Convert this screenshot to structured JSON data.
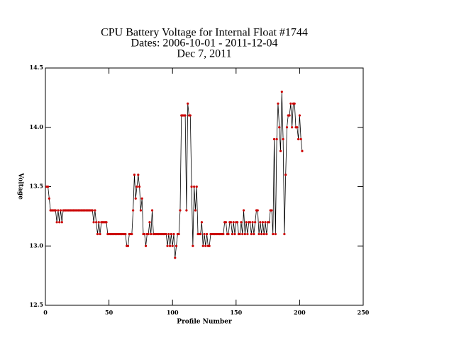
{
  "chart_data": {
    "type": "line",
    "title": [
      "CPU Battery Voltage for Internal Float #1744",
      "Dates:  2006-10-01 -  2011-12-04",
      "Dec  7, 2011"
    ],
    "x_label": "Profile Number",
    "y_label": "Voltage",
    "xlim": [
      0,
      250
    ],
    "xticks": [
      0,
      50,
      100,
      150,
      200,
      250
    ],
    "ylim": [
      12.5,
      14.5
    ],
    "yticks": [
      12.5,
      {
        "value": 13,
        "label": "13.0"
      },
      13.5,
      {
        "value": 14,
        "label": "14.0"
      },
      14.5
    ],
    "line_color": "#000000",
    "marker_color": "#cc0000",
    "x": [
      1,
      2,
      3,
      4,
      5,
      6,
      7,
      8,
      9,
      10,
      11,
      12,
      13,
      14,
      15,
      16,
      17,
      18,
      19,
      20,
      21,
      22,
      23,
      24,
      25,
      26,
      27,
      28,
      29,
      30,
      31,
      32,
      33,
      34,
      35,
      36,
      37,
      38,
      39,
      40,
      41,
      42,
      43,
      44,
      45,
      46,
      47,
      48,
      49,
      50,
      51,
      52,
      53,
      54,
      55,
      56,
      57,
      58,
      59,
      60,
      61,
      62,
      63,
      64,
      65,
      66,
      67,
      68,
      69,
      70,
      71,
      72,
      73,
      74,
      75,
      76,
      77,
      78,
      79,
      80,
      81,
      82,
      83,
      84,
      85,
      86,
      87,
      88,
      89,
      90,
      91,
      92,
      93,
      94,
      95,
      96,
      97,
      98,
      99,
      100,
      101,
      102,
      103,
      104,
      105,
      106,
      107,
      108,
      109,
      110,
      111,
      112,
      113,
      114,
      115,
      116,
      117,
      118,
      119,
      120,
      121,
      122,
      123,
      124,
      125,
      126,
      127,
      128,
      129,
      130,
      131,
      132,
      133,
      134,
      135,
      136,
      137,
      138,
      139,
      140,
      141,
      142,
      143,
      144,
      145,
      146,
      147,
      148,
      149,
      150,
      151,
      152,
      153,
      154,
      155,
      156,
      157,
      158,
      159,
      160,
      161,
      162,
      163,
      164,
      165,
      166,
      167,
      168,
      169,
      170,
      171,
      172,
      173,
      174,
      175,
      176,
      177,
      178,
      179,
      180,
      181,
      182,
      183,
      184,
      185,
      186,
      187,
      188,
      189,
      190,
      191,
      192,
      193,
      194,
      195,
      196,
      197,
      198,
      199,
      200,
      201,
      202
    ],
    "values": [
      13.5,
      13.5,
      13.4,
      13.3,
      13.3,
      13.3,
      13.3,
      13.3,
      13.2,
      13.3,
      13.2,
      13.3,
      13.2,
      13.3,
      13.3,
      13.3,
      13.3,
      13.3,
      13.3,
      13.3,
      13.3,
      13.3,
      13.3,
      13.3,
      13.3,
      13.3,
      13.3,
      13.3,
      13.3,
      13.3,
      13.3,
      13.3,
      13.3,
      13.3,
      13.3,
      13.3,
      13.3,
      13.2,
      13.3,
      13.2,
      13.1,
      13.2,
      13.1,
      13.2,
      13.2,
      13.2,
      13.2,
      13.2,
      13.1,
      13.1,
      13.1,
      13.1,
      13.1,
      13.1,
      13.1,
      13.1,
      13.1,
      13.1,
      13.1,
      13.1,
      13.1,
      13.1,
      13.1,
      13.0,
      13.0,
      13.1,
      13.1,
      13.1,
      13.3,
      13.6,
      13.4,
      13.5,
      13.6,
      13.5,
      13.3,
      13.4,
      13.1,
      13.1,
      13.0,
      13.1,
      13.1,
      13.2,
      13.1,
      13.3,
      13.1,
      13.1,
      13.1,
      13.1,
      13.1,
      13.1,
      13.1,
      13.1,
      13.1,
      13.1,
      13.1,
      13.0,
      13.1,
      13.0,
      13.1,
      13.0,
      13.1,
      12.9,
      13.0,
      13.1,
      13.1,
      13.3,
      14.1,
      14.1,
      14.1,
      14.1,
      13.3,
      14.2,
      14.1,
      14.1,
      13.5,
      13.0,
      13.5,
      13.3,
      13.5,
      13.1,
      13.1,
      13.1,
      13.2,
      13.0,
      13.1,
      13.0,
      13.1,
      13.0,
      13.0,
      13.1,
      13.1,
      13.1,
      13.1,
      13.1,
      13.1,
      13.1,
      13.1,
      13.1,
      13.1,
      13.1,
      13.2,
      13.2,
      13.1,
      13.1,
      13.2,
      13.2,
      13.1,
      13.2,
      13.1,
      13.2,
      13.2,
      13.1,
      13.1,
      13.2,
      13.1,
      13.3,
      13.1,
      13.2,
      13.1,
      13.2,
      13.2,
      13.1,
      13.2,
      13.1,
      13.2,
      13.3,
      13.3,
      13.1,
      13.2,
      13.1,
      13.2,
      13.1,
      13.2,
      13.1,
      13.2,
      13.2,
      13.3,
      13.3,
      13.1,
      13.9,
      13.1,
      13.9,
      14.2,
      14.0,
      13.8,
      14.3,
      13.9,
      13.1,
      13.6,
      14.0,
      14.1,
      14.1,
      14.2,
      14.0,
      14.2,
      14.2,
      14.0,
      14.0,
      13.9,
      14.1,
      13.9,
      13.8
    ]
  }
}
